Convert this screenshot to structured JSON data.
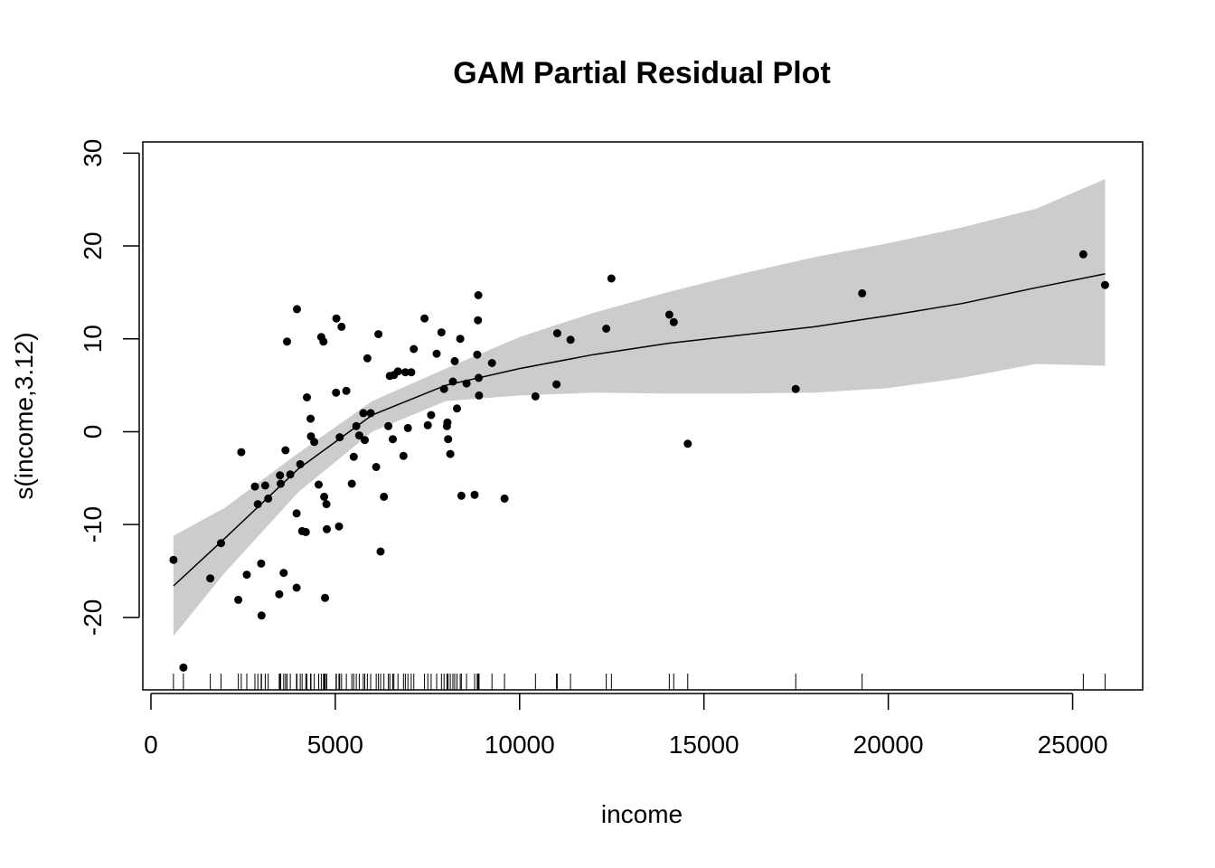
{
  "chart_data": {
    "type": "scatter",
    "title": "GAM Partial Residual Plot",
    "xlabel": "income",
    "ylabel": "s(income,3.12)",
    "xlim": [
      -220,
      26900
    ],
    "ylim": [
      -27.8,
      31.2
    ],
    "x_ticks": [
      0,
      5000,
      10000,
      15000,
      20000,
      25000
    ],
    "y_ticks": [
      -20,
      -10,
      0,
      10,
      20,
      30
    ],
    "x_tick_labels": [
      "0",
      "5000",
      "10000",
      "15000",
      "20000",
      "25000"
    ],
    "y_tick_labels": [
      "-20",
      "-10",
      "0",
      "10",
      "20",
      "30"
    ],
    "grid": false,
    "legend": "none",
    "colors": {
      "points": "#000000",
      "smooth": "#000000",
      "band": "#cccccc",
      "axes": "#000000"
    },
    "smooth": {
      "x": [
        611,
        2000,
        4000,
        6000,
        8000,
        10000,
        12000,
        14000,
        16000,
        18000,
        20000,
        22000,
        24000,
        25879
      ],
      "fit": [
        -16.6,
        -11.5,
        -4.0,
        1.8,
        5.0,
        6.8,
        8.3,
        9.5,
        10.4,
        11.3,
        12.5,
        13.8,
        15.5,
        17.0
      ],
      "lower": [
        -22.0,
        -15.2,
        -6.5,
        0.0,
        3.3,
        3.9,
        4.2,
        4.1,
        4.1,
        4.2,
        4.7,
        5.8,
        7.3,
        7.1
      ],
      "upper": [
        -11.2,
        -8.2,
        -2.3,
        3.3,
        6.8,
        10.2,
        12.8,
        15.0,
        17.0,
        18.8,
        20.3,
        22.0,
        24.0,
        27.2
      ]
    },
    "points": [
      {
        "x": 611,
        "y": -13.8
      },
      {
        "x": 880,
        "y": -25.4
      },
      {
        "x": 1610,
        "y": -15.8
      },
      {
        "x": 1900,
        "y": -12.0
      },
      {
        "x": 2370,
        "y": -18.1
      },
      {
        "x": 2450,
        "y": -2.2
      },
      {
        "x": 2600,
        "y": -15.4
      },
      {
        "x": 2820,
        "y": -5.9
      },
      {
        "x": 2900,
        "y": -7.8
      },
      {
        "x": 2990,
        "y": -14.2
      },
      {
        "x": 3000,
        "y": -19.8
      },
      {
        "x": 3100,
        "y": -5.8
      },
      {
        "x": 3180,
        "y": -7.2
      },
      {
        "x": 3480,
        "y": -17.5
      },
      {
        "x": 3500,
        "y": -4.7
      },
      {
        "x": 3520,
        "y": -5.6
      },
      {
        "x": 3600,
        "y": -15.2
      },
      {
        "x": 3650,
        "y": -2.0
      },
      {
        "x": 3690,
        "y": 9.7
      },
      {
        "x": 3780,
        "y": -4.6
      },
      {
        "x": 3950,
        "y": -16.8
      },
      {
        "x": 3950,
        "y": -8.8
      },
      {
        "x": 3960,
        "y": 13.2
      },
      {
        "x": 4050,
        "y": -3.5
      },
      {
        "x": 4100,
        "y": -10.7
      },
      {
        "x": 4200,
        "y": -10.8
      },
      {
        "x": 4230,
        "y": 3.7
      },
      {
        "x": 4330,
        "y": 1.4
      },
      {
        "x": 4340,
        "y": -0.5
      },
      {
        "x": 4430,
        "y": -1.1
      },
      {
        "x": 4550,
        "y": -5.7
      },
      {
        "x": 4620,
        "y": 10.2
      },
      {
        "x": 4680,
        "y": 9.7
      },
      {
        "x": 4700,
        "y": -7.0
      },
      {
        "x": 4720,
        "y": -17.9
      },
      {
        "x": 4760,
        "y": -7.8
      },
      {
        "x": 4770,
        "y": -10.5
      },
      {
        "x": 5020,
        "y": 4.2
      },
      {
        "x": 5030,
        "y": 12.2
      },
      {
        "x": 5100,
        "y": -10.2
      },
      {
        "x": 5120,
        "y": -0.6
      },
      {
        "x": 5170,
        "y": 11.3
      },
      {
        "x": 5300,
        "y": 4.4
      },
      {
        "x": 5450,
        "y": -5.6
      },
      {
        "x": 5500,
        "y": -2.7
      },
      {
        "x": 5570,
        "y": 0.6
      },
      {
        "x": 5650,
        "y": -0.4
      },
      {
        "x": 5760,
        "y": 2.0
      },
      {
        "x": 5800,
        "y": -0.9
      },
      {
        "x": 5870,
        "y": 7.9
      },
      {
        "x": 5960,
        "y": 2.0
      },
      {
        "x": 6110,
        "y": -3.8
      },
      {
        "x": 6170,
        "y": 10.5
      },
      {
        "x": 6230,
        "y": -12.9
      },
      {
        "x": 6320,
        "y": -7.0
      },
      {
        "x": 6440,
        "y": 0.6
      },
      {
        "x": 6480,
        "y": 6.0
      },
      {
        "x": 6560,
        "y": -0.8
      },
      {
        "x": 6590,
        "y": 6.1
      },
      {
        "x": 6700,
        "y": 6.5
      },
      {
        "x": 6850,
        "y": -2.6
      },
      {
        "x": 6900,
        "y": 6.4
      },
      {
        "x": 6970,
        "y": 0.4
      },
      {
        "x": 7060,
        "y": 6.4
      },
      {
        "x": 7130,
        "y": 8.9
      },
      {
        "x": 7420,
        "y": 12.2
      },
      {
        "x": 7510,
        "y": 0.7
      },
      {
        "x": 7600,
        "y": 1.8
      },
      {
        "x": 7750,
        "y": 8.4
      },
      {
        "x": 7880,
        "y": 10.7
      },
      {
        "x": 7950,
        "y": 4.6
      },
      {
        "x": 8030,
        "y": 0.6
      },
      {
        "x": 8040,
        "y": 1.0
      },
      {
        "x": 8060,
        "y": -0.8
      },
      {
        "x": 8120,
        "y": -2.4
      },
      {
        "x": 8190,
        "y": 5.4
      },
      {
        "x": 8240,
        "y": 7.6
      },
      {
        "x": 8300,
        "y": 2.5
      },
      {
        "x": 8390,
        "y": 10.0
      },
      {
        "x": 8420,
        "y": -6.9
      },
      {
        "x": 8560,
        "y": 5.2
      },
      {
        "x": 8780,
        "y": -6.8
      },
      {
        "x": 8850,
        "y": 8.3
      },
      {
        "x": 8870,
        "y": 12.0
      },
      {
        "x": 8880,
        "y": 14.7
      },
      {
        "x": 8890,
        "y": 5.8
      },
      {
        "x": 8900,
        "y": 3.9
      },
      {
        "x": 9250,
        "y": 7.4
      },
      {
        "x": 9590,
        "y": -7.2
      },
      {
        "x": 10430,
        "y": 3.8
      },
      {
        "x": 11000,
        "y": 5.1
      },
      {
        "x": 11020,
        "y": 10.6
      },
      {
        "x": 11380,
        "y": 9.9
      },
      {
        "x": 12350,
        "y": 11.1
      },
      {
        "x": 12490,
        "y": 16.5
      },
      {
        "x": 14060,
        "y": 12.6
      },
      {
        "x": 14180,
        "y": 11.8
      },
      {
        "x": 14560,
        "y": -1.3
      },
      {
        "x": 17490,
        "y": 4.6
      },
      {
        "x": 19290,
        "y": 14.9
      },
      {
        "x": 25290,
        "y": 19.1
      },
      {
        "x": 25879,
        "y": 15.8
      }
    ]
  }
}
